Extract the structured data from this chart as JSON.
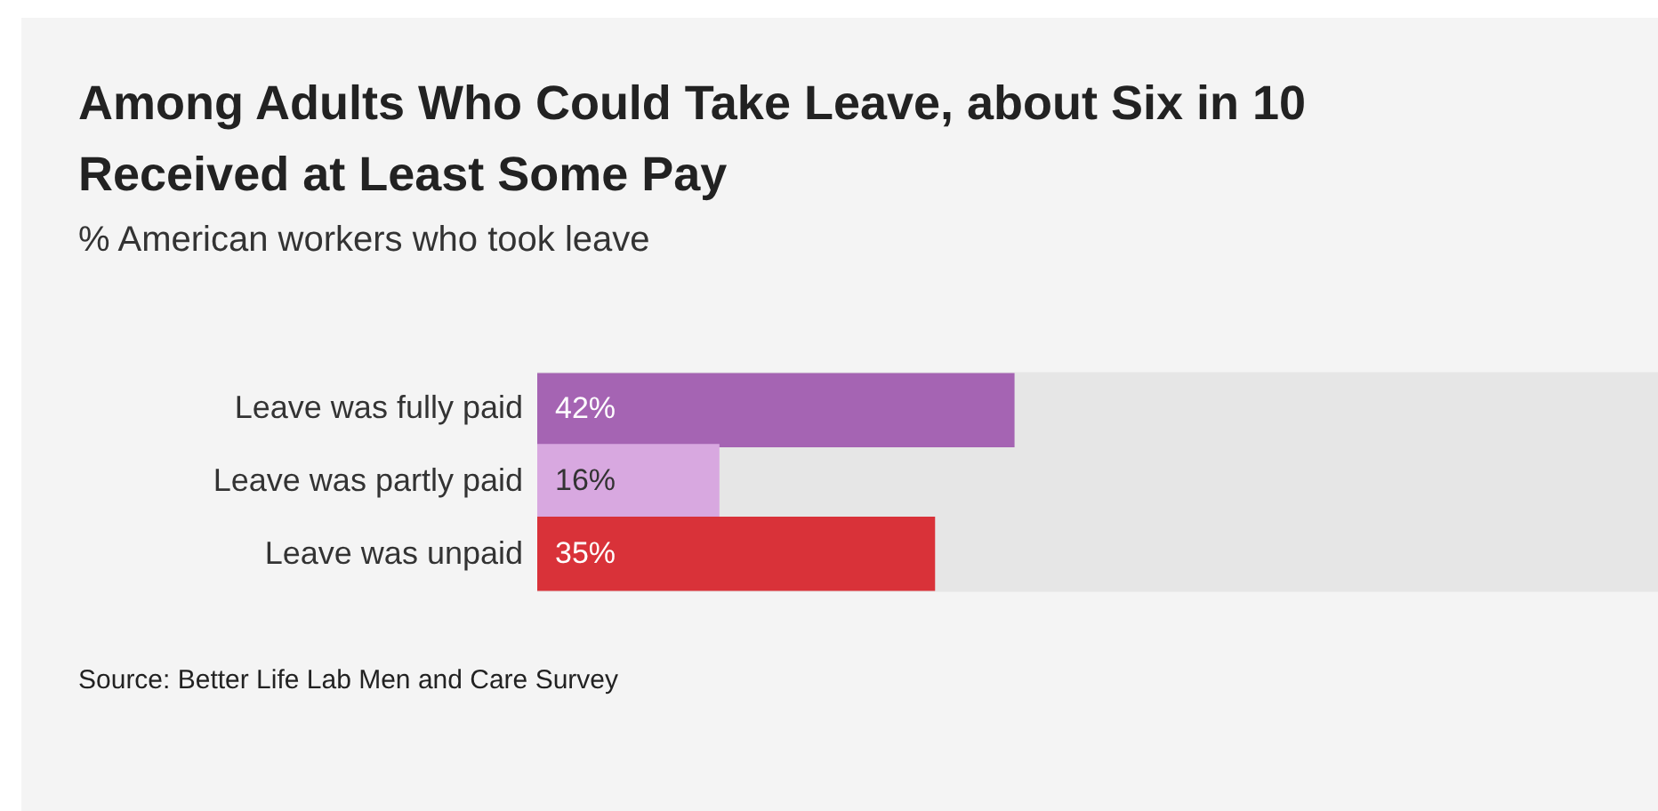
{
  "chart_data": {
    "type": "bar",
    "orientation": "horizontal",
    "title": "Among Adults Who Could Take Leave, about Six in 10 Received at Least Some Pay",
    "subtitle": "% American workers who took leave",
    "categories": [
      "Leave was fully paid",
      "Leave was partly paid",
      "Leave was unpaid"
    ],
    "values": [
      42,
      16,
      35
    ],
    "colors": [
      "#a564b3",
      "#d8a8e0",
      "#d93239"
    ],
    "value_labels": [
      "42%",
      "16%",
      "35%"
    ],
    "xlim": [
      0,
      100
    ],
    "annotations": [
      "Source: Better Life Lab Men and Care Survey"
    ]
  }
}
